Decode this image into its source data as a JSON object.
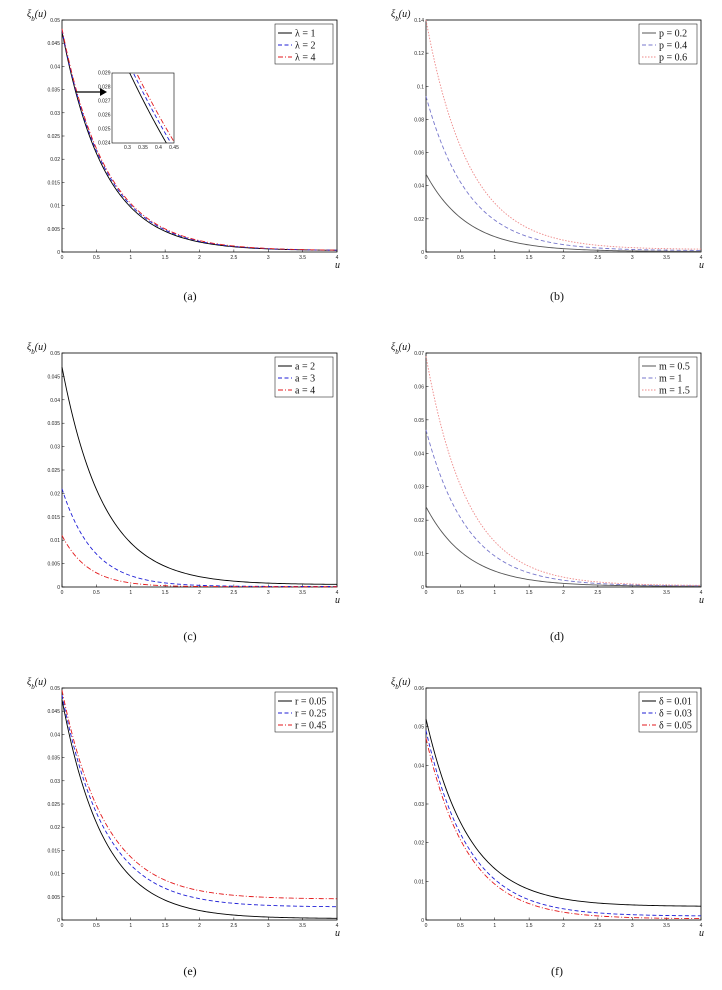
{
  "panels": [
    {
      "caption": "(a)",
      "chart_data": {
        "type": "line",
        "ylabel": "ξb(u)",
        "xlabel": "u",
        "xlim": [
          0,
          4
        ],
        "ylim": [
          0,
          0.05
        ],
        "xticks": [
          "0",
          "0.5",
          "1",
          "1.5",
          "2",
          "2.5",
          "3",
          "3.5",
          "4"
        ],
        "yticks": [
          "0",
          "0.005",
          "0.01",
          "0.015",
          "0.02",
          "0.025",
          "0.03",
          "0.035",
          "0.04",
          "0.045",
          "0.05"
        ],
        "legend_position": "top-right",
        "series": [
          {
            "name": "λ = 1",
            "color": "#000000",
            "dash": "solid",
            "y0": 0.0475,
            "k": 1.62,
            "c": 0.0003
          },
          {
            "name": "λ = 2",
            "color": "#1f1fd6",
            "dash": "dash",
            "y0": 0.0478,
            "k": 1.58,
            "c": 0.0003
          },
          {
            "name": "λ = 4",
            "color": "#e31a1c",
            "dash": "dashdot",
            "y0": 0.0481,
            "k": 1.55,
            "c": 0.0003
          }
        ],
        "inset": {
          "xlim": [
            0.25,
            0.45
          ],
          "ylim": [
            0.024,
            0.029
          ],
          "xticks": [
            "0.3",
            "0.35",
            "0.4",
            "0.45"
          ],
          "yticks": [
            "0.024",
            "0.025",
            "0.026",
            "0.027",
            "0.028",
            "0.029"
          ]
        }
      }
    },
    {
      "caption": "(b)",
      "chart_data": {
        "type": "line",
        "ylabel": "ξb(u)",
        "xlabel": "u",
        "xlim": [
          0,
          4
        ],
        "ylim": [
          0,
          0.14
        ],
        "xticks": [
          "0",
          "0.5",
          "1",
          "1.5",
          "2",
          "2.5",
          "3",
          "3.5",
          "4"
        ],
        "yticks": [
          "0",
          "0.02",
          "0.04",
          "0.06",
          "0.08",
          "0.1",
          "0.12",
          "0.14"
        ],
        "legend_position": "top-right",
        "series": [
          {
            "name": "p = 0.2",
            "color": "#555555",
            "dash": "solid",
            "y0": 0.047,
            "k": 1.65,
            "c": 0.0003
          },
          {
            "name": "p = 0.4",
            "color": "#7777cc",
            "dash": "dash",
            "y0": 0.094,
            "k": 1.62,
            "c": 0.0008
          },
          {
            "name": "p = 0.6",
            "color": "#ee8888",
            "dash": "dot",
            "y0": 0.14,
            "k": 1.6,
            "c": 0.0015
          }
        ]
      }
    },
    {
      "caption": "(c)",
      "chart_data": {
        "type": "line",
        "ylabel": "ξb(u)",
        "xlabel": "u",
        "xlim": [
          0,
          4
        ],
        "ylim": [
          0,
          0.05
        ],
        "xticks": [
          "0",
          "0.5",
          "1",
          "1.5",
          "2",
          "2.5",
          "3",
          "3.5",
          "4"
        ],
        "yticks": [
          "0",
          "0.005",
          "0.01",
          "0.015",
          "0.02",
          "0.025",
          "0.03",
          "0.035",
          "0.04",
          "0.045",
          "0.05"
        ],
        "legend_position": "top-right",
        "series": [
          {
            "name": "a = 2",
            "color": "#000000",
            "dash": "solid",
            "y0": 0.047,
            "k": 1.65,
            "c": 0.0005
          },
          {
            "name": "a = 3",
            "color": "#1f1fd6",
            "dash": "dash",
            "y0": 0.021,
            "k": 2.2,
            "c": 0.0001
          },
          {
            "name": "a = 4",
            "color": "#e31a1c",
            "dash": "dashdot",
            "y0": 0.011,
            "k": 2.6,
            "c": 5e-05
          }
        ]
      }
    },
    {
      "caption": "(d)",
      "chart_data": {
        "type": "line",
        "ylabel": "ξb(u)",
        "xlabel": "u",
        "xlim": [
          0,
          4
        ],
        "ylim": [
          0,
          0.07
        ],
        "xticks": [
          "0",
          "0.5",
          "1",
          "1.5",
          "2",
          "2.5",
          "3",
          "3.5",
          "4"
        ],
        "yticks": [
          "0",
          "0.01",
          "0.02",
          "0.03",
          "0.04",
          "0.05",
          "0.06",
          "0.07"
        ],
        "legend_position": "top-right",
        "series": [
          {
            "name": "m = 0.5",
            "color": "#555555",
            "dash": "solid",
            "y0": 0.024,
            "k": 1.65,
            "c": 0.0002
          },
          {
            "name": "m = 1",
            "color": "#7777cc",
            "dash": "dash",
            "y0": 0.047,
            "k": 1.65,
            "c": 0.0003
          },
          {
            "name": "m = 1.5",
            "color": "#ee8888",
            "dash": "dot",
            "y0": 0.069,
            "k": 1.65,
            "c": 0.0004
          }
        ]
      }
    },
    {
      "caption": "(e)",
      "chart_data": {
        "type": "line",
        "ylabel": "ξb(u)",
        "xlabel": "u",
        "xlim": [
          0,
          4
        ],
        "ylim": [
          0,
          0.05
        ],
        "xticks": [
          "0",
          "0.5",
          "1",
          "1.5",
          "2",
          "2.5",
          "3",
          "3.5",
          "4"
        ],
        "yticks": [
          "0",
          "0.005",
          "0.01",
          "0.015",
          "0.02",
          "0.025",
          "0.03",
          "0.035",
          "0.04",
          "0.045",
          "0.05"
        ],
        "legend_position": "top-right",
        "series": [
          {
            "name": "r = 0.05",
            "color": "#000000",
            "dash": "solid",
            "y0": 0.0475,
            "k": 1.65,
            "c": 0.0003
          },
          {
            "name": "r = 0.25",
            "color": "#1f1fd6",
            "dash": "dash",
            "y0": 0.0485,
            "k": 1.62,
            "c": 0.0028
          },
          {
            "name": "r = 0.45",
            "color": "#e31a1c",
            "dash": "dashdot",
            "y0": 0.0495,
            "k": 1.6,
            "c": 0.0045
          }
        ]
      }
    },
    {
      "caption": "(f)",
      "chart_data": {
        "type": "line",
        "ylabel": "ξb(u)",
        "xlabel": "u",
        "xlim": [
          0,
          4
        ],
        "ylim": [
          0,
          0.06
        ],
        "xticks": [
          "0",
          "0.5",
          "1",
          "1.5",
          "2",
          "2.5",
          "3",
          "3.5",
          "4"
        ],
        "yticks": [
          "0",
          "0.01",
          "0.02",
          "0.03",
          "0.04",
          "0.05",
          "0.06"
        ],
        "legend_position": "top-right",
        "series": [
          {
            "name": "δ = 0.01",
            "color": "#000000",
            "dash": "solid",
            "y0": 0.052,
            "k": 1.6,
            "c": 0.0035
          },
          {
            "name": "δ = 0.03",
            "color": "#1f1fd6",
            "dash": "dash",
            "y0": 0.049,
            "k": 1.62,
            "c": 0.001
          },
          {
            "name": "δ = 0.05",
            "color": "#e31a1c",
            "dash": "dashdot",
            "y0": 0.047,
            "k": 1.65,
            "c": 0.0003
          }
        ]
      }
    }
  ]
}
